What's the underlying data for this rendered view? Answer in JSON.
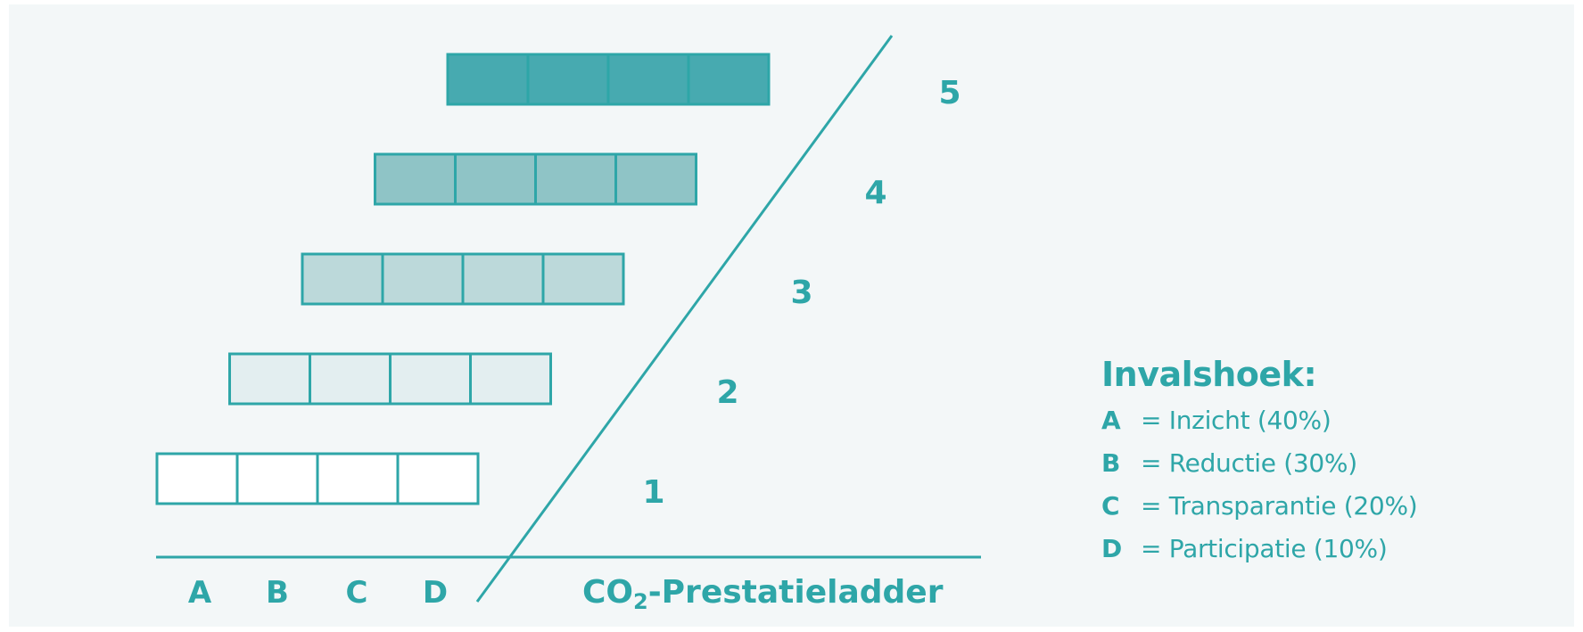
{
  "colors": {
    "accent": "#2ea6a8",
    "background": "#f3f7f8",
    "level_fills": [
      "#ffffff",
      "#e3eef0",
      "#bcd9da",
      "#8fc4c6",
      "#47aab0"
    ]
  },
  "diagram": {
    "levels": [
      {
        "label": "1",
        "cells": 4
      },
      {
        "label": "2",
        "cells": 4
      },
      {
        "label": "3",
        "cells": 4
      },
      {
        "label": "4",
        "cells": 4
      },
      {
        "label": "5",
        "cells": 4
      }
    ],
    "axis_letters": [
      "A",
      "B",
      "C",
      "D"
    ],
    "ladder_label_main": "CO",
    "ladder_label_sub": "2",
    "ladder_label_rest": "-Prestatieladder"
  },
  "legend": {
    "title": "Invalshoek:",
    "items": [
      {
        "key": "A",
        "desc": "= Inzicht (40%)"
      },
      {
        "key": "B",
        "desc": "= Reductie (30%)"
      },
      {
        "key": "C",
        "desc": "= Transparantie (20%)"
      },
      {
        "key": "D",
        "desc": "= Participatie (10%)"
      }
    ]
  }
}
